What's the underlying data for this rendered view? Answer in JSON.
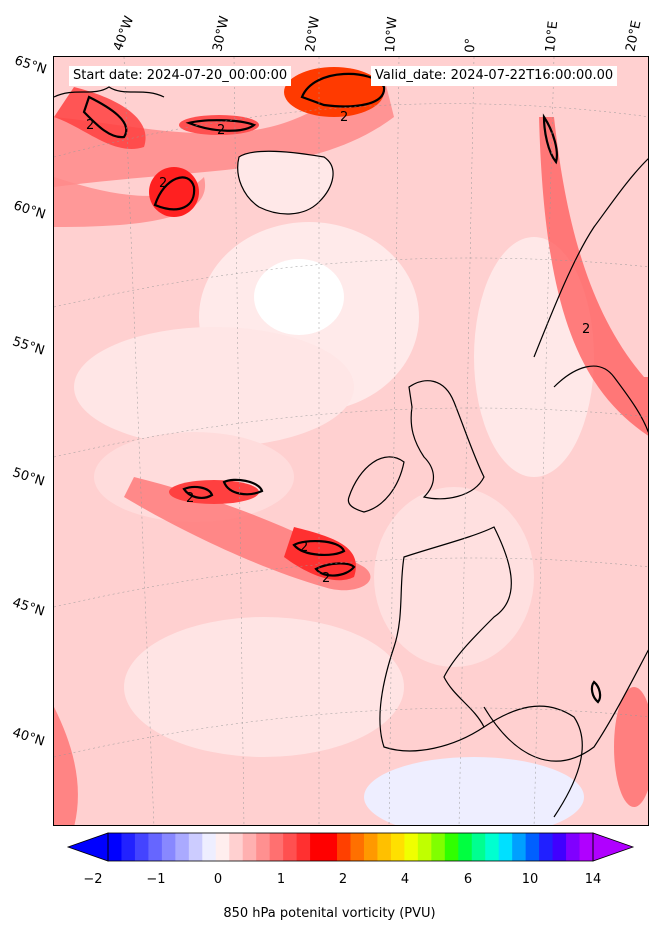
{
  "header": {
    "start_date": "Start date: 2024-07-20_00:00:00",
    "valid_date": "Valid_date: 2024-07-22T16:00:00.00"
  },
  "longitude_labels": [
    "40°W",
    "30°W",
    "20°W",
    "10°W",
    "0°",
    "10°E",
    "20°E"
  ],
  "latitude_labels": [
    "65°N",
    "60°N",
    "55°N",
    "50°N",
    "45°N",
    "40°N"
  ],
  "contour_label": "2",
  "colorbar": {
    "label": "850 hPa potenital vorticity (PVU)",
    "ticks": [
      "−2",
      "−1",
      "0",
      "1",
      "2",
      "4",
      "6",
      "10",
      "14"
    ],
    "colors": [
      "#0000ff",
      "#2222ff",
      "#4444ff",
      "#6666ff",
      "#8888ff",
      "#aaaaff",
      "#ccccff",
      "#eeeeff",
      "#ffeeee",
      "#ffd0d0",
      "#ffb0b0",
      "#ff9090",
      "#ff7070",
      "#ff5050",
      "#ff3030",
      "#ff0000",
      "#ff0000",
      "#ff4000",
      "#ff7000",
      "#ff9900",
      "#ffc000",
      "#ffe000",
      "#f0ff00",
      "#c0ff00",
      "#80ff00",
      "#30ff00",
      "#00ff40",
      "#00ff90",
      "#00ffd0",
      "#00e0ff",
      "#00a0ff",
      "#0060ff",
      "#2020ff",
      "#4000ff",
      "#8000ff",
      "#b000ff"
    ]
  }
}
